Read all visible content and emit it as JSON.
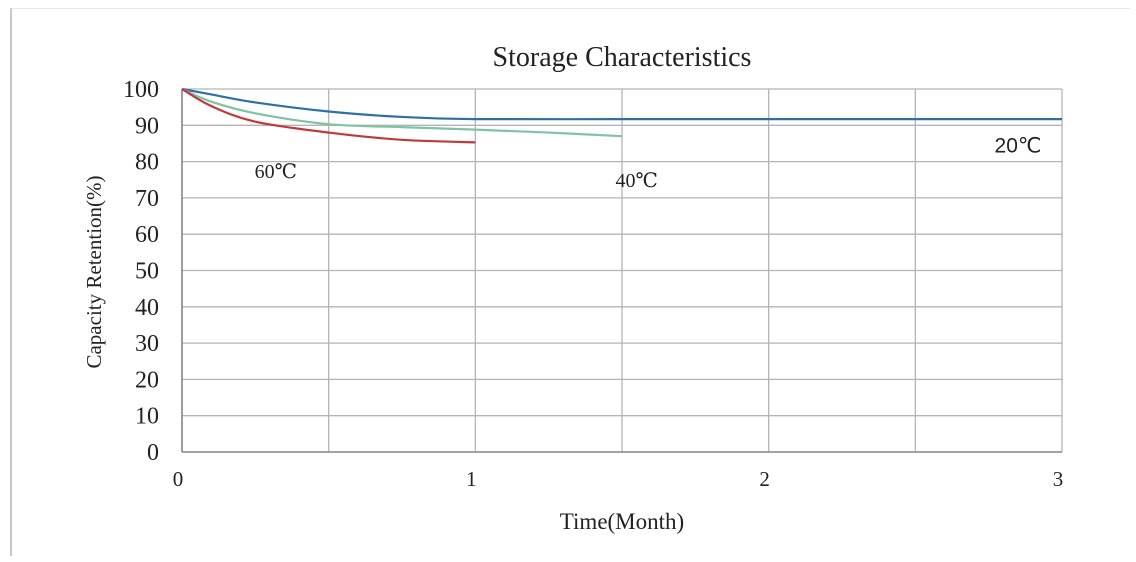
{
  "chart_data": {
    "type": "line",
    "title": "Storage Characteristics",
    "xlabel": "Time(Month)",
    "ylabel": "Capacity Retention(%)",
    "xlim": [
      0,
      3
    ],
    "ylim": [
      0,
      100
    ],
    "x_ticks": [
      0,
      1,
      2,
      3
    ],
    "x_tick_labels": [
      "0",
      "1",
      "2",
      "3"
    ],
    "y_ticks": [
      0,
      10,
      20,
      30,
      40,
      50,
      60,
      70,
      80,
      90,
      100
    ],
    "y_tick_labels": [
      "0",
      "10",
      "20",
      "30",
      "40",
      "50",
      "60",
      "70",
      "80",
      "90",
      "100"
    ],
    "grid": true,
    "series": [
      {
        "name": "20℃",
        "color": "#2f6fa8",
        "x": [
          0,
          0.1,
          0.25,
          0.5,
          0.75,
          1.0,
          1.5,
          2.0,
          2.5,
          3.0
        ],
        "y": [
          100,
          98.5,
          96.3,
          93.8,
          92.3,
          91.7,
          91.7,
          91.7,
          91.7,
          91.7
        ]
      },
      {
        "name": "40℃",
        "color": "#7cc4a4",
        "x": [
          0,
          0.1,
          0.25,
          0.5,
          0.75,
          1.0,
          1.25,
          1.5
        ],
        "y": [
          100,
          96.5,
          93.3,
          90.3,
          89.5,
          88.8,
          88.0,
          87.0
        ]
      },
      {
        "name": "60℃",
        "color": "#c0393b",
        "x": [
          0,
          0.1,
          0.25,
          0.5,
          0.75,
          1.0
        ],
        "y": [
          100,
          95.3,
          91.0,
          88.0,
          86.0,
          85.3
        ]
      }
    ],
    "annotations": [
      {
        "text": "60℃",
        "x": 0.32,
        "y": 75.5,
        "style": "serif"
      },
      {
        "text": "40℃",
        "x": 1.55,
        "y": 73.0,
        "style": "serif"
      },
      {
        "text": "20℃",
        "x": 2.85,
        "y": 82.5,
        "style": "sans"
      }
    ]
  }
}
